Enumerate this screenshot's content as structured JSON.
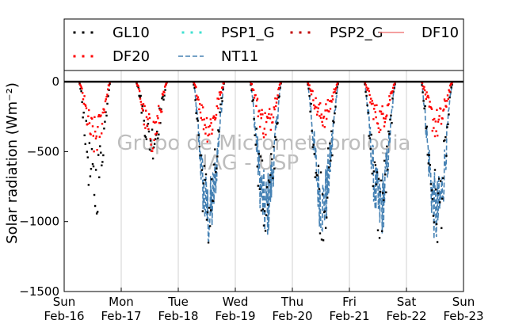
{
  "chart_data": {
    "type": "line",
    "title": "",
    "xlabel": "",
    "ylabel": "Solar radiation (Wm⁻²)",
    "ylim": [
      -1500,
      80
    ],
    "yticks": [
      0,
      -500,
      -1000,
      -1500
    ],
    "xlim": [
      "2009-02-16",
      "2009-02-23"
    ],
    "xticks": [
      {
        "date": "2009-02-16",
        "day": "Sun",
        "label": "Feb-16"
      },
      {
        "date": "2009-02-17",
        "day": "Mon",
        "label": "Feb-17"
      },
      {
        "date": "2009-02-18",
        "day": "Tue",
        "label": "Feb-18"
      },
      {
        "date": "2009-02-19",
        "day": "Wed",
        "label": "Feb-19"
      },
      {
        "date": "2009-02-20",
        "day": "Thu",
        "label": "Feb-20"
      },
      {
        "date": "2009-02-21",
        "day": "Fri",
        "label": "Feb-21"
      },
      {
        "date": "2009-02-22",
        "day": "Sat",
        "label": "Feb-22"
      },
      {
        "date": "2009-02-23",
        "day": "Sun",
        "label": "Feb-23"
      }
    ],
    "grid": "vertical",
    "legend_position": "top",
    "watermark": [
      "Grupo de Micrometeorologia",
      "IAG - USP"
    ],
    "series": [
      {
        "name": "GL10",
        "style": "dotted",
        "color": "#000000",
        "daily_peak": [
          -1000,
          -560,
          -1240,
          -1190,
          -1150,
          -1180,
          -1220
        ]
      },
      {
        "name": "PSP1_G",
        "style": "dotted",
        "color": "#40e0d0",
        "daily_peak": [
          0,
          0,
          0,
          0,
          0,
          0,
          0
        ]
      },
      {
        "name": "PSP2_G",
        "style": "dotted",
        "color": "#c00000",
        "daily_peak": [
          0,
          0,
          0,
          0,
          0,
          0,
          0
        ]
      },
      {
        "name": "DF10",
        "style": "solid",
        "color": "#f08080",
        "daily_peak": [
          0,
          0,
          0,
          0,
          0,
          0,
          0
        ]
      },
      {
        "name": "DF20",
        "style": "dotted",
        "color": "#ff0000",
        "daily_peak": [
          -550,
          -520,
          -440,
          -420,
          -340,
          -370,
          -420
        ]
      },
      {
        "name": "NT11",
        "style": "dashed",
        "color": "#4682b4",
        "daily_peak": [
          0,
          0,
          -1230,
          -1170,
          -1130,
          -1170,
          -1220
        ]
      }
    ]
  }
}
